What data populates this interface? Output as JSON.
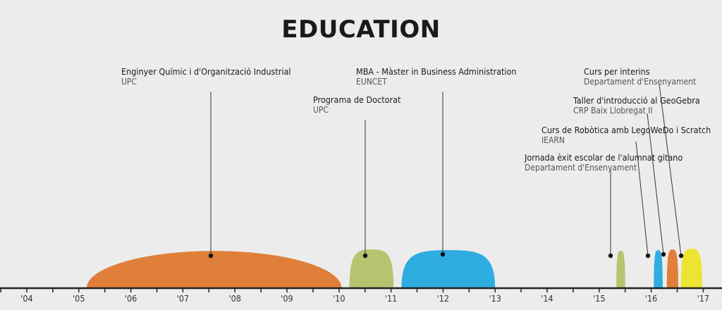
{
  "title": "EDUCATION",
  "years": [
    "'04",
    "'05",
    "'06",
    "'07",
    "'08",
    "'09",
    "'10",
    "'11",
    "'12",
    "'13",
    "'14",
    "'15",
    "'16",
    "'17"
  ],
  "colors": {
    "orange": "#e07f3a",
    "green": "#b7c46f",
    "blue": "#30ade0",
    "yellow": "#ede331",
    "axis": "#222222",
    "text": "#1a1a1a",
    "subtext": "#555555"
  },
  "events": [
    {
      "title": "Enginyer Químic i d'Organització Industrial",
      "subtitle": "UPC",
      "color": "orange",
      "start": 2005.15,
      "end": 2010.05,
      "height": 0.98
    },
    {
      "title": "Programa de Doctorat",
      "subtitle": "UPC",
      "color": "green",
      "start": 2010.2,
      "end": 2011.05,
      "height": 1.0
    },
    {
      "title": "MBA - Màster in Business Administration",
      "subtitle": "EUNCET",
      "color": "blue",
      "start": 2011.2,
      "end": 2013.0,
      "height": 1.0
    },
    {
      "title": "Jornada èxit escolar de l'alumnat gitano",
      "subtitle": "Departament d'Ensenyament",
      "color": "green",
      "start": 2015.33,
      "end": 2015.5,
      "height": 1.0
    },
    {
      "title": "Curs de Robòtica amb LegoWeDo i Scratch",
      "subtitle": "IEARN",
      "color": "blue",
      "start": 2016.05,
      "end": 2016.22,
      "height": 1.0
    },
    {
      "title": "Taller d'introducció al GeoGebra",
      "subtitle": "CRP Baix Llobregat II",
      "color": "orange",
      "start": 2016.3,
      "end": 2016.52,
      "height": 1.0
    },
    {
      "title": "Curs per interins",
      "subtitle": "Departament d'Ensenyament",
      "color": "yellow",
      "start": 2016.57,
      "end": 2016.98,
      "height": 1.0
    }
  ]
}
